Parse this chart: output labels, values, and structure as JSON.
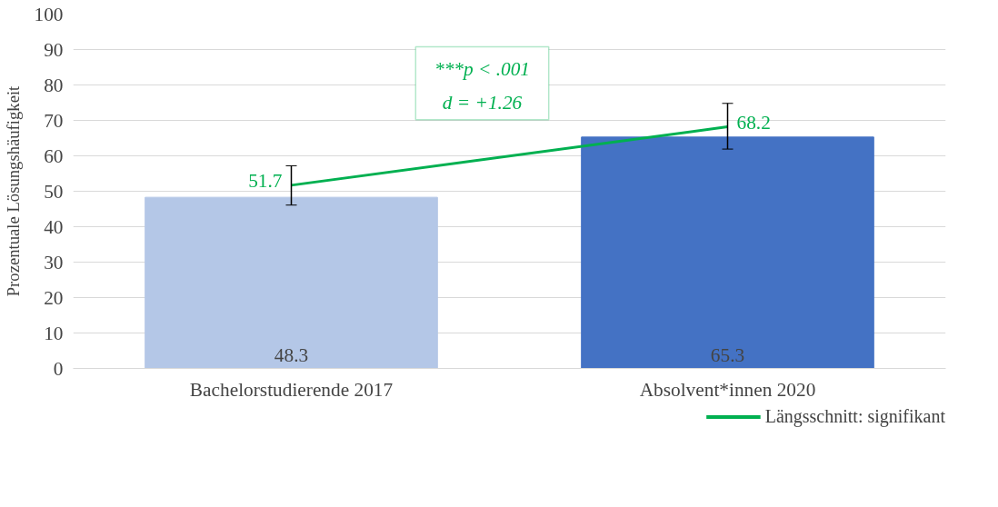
{
  "chart_data": {
    "type": "bar",
    "ylabel": "Prozentuale Lösungshäufigkeit",
    "categories": [
      "Bachelorstudierende 2017",
      "Absolvent*innen 2020"
    ],
    "series": [
      {
        "colors": [
          "#b4c7e7",
          "#4472c4"
        ],
        "values": [
          48.3,
          65.3
        ]
      },
      {
        "type": "line",
        "name": "Längsschnitt: signifikant",
        "color": "#00b050",
        "values": [
          51.7,
          68.2
        ],
        "errors": [
          [
            46.1,
            57.2
          ],
          [
            61.9,
            74.8
          ]
        ]
      }
    ],
    "ylim": [
      0,
      100
    ],
    "yticks": [
      0,
      10,
      20,
      30,
      40,
      50,
      60,
      70,
      80,
      90,
      100
    ],
    "grid": "y",
    "legend": "bottom right",
    "data_labels": true,
    "marker": "none",
    "line_style": "solid",
    "annotations": [
      "***p < .001",
      "d = +1.26"
    ]
  }
}
